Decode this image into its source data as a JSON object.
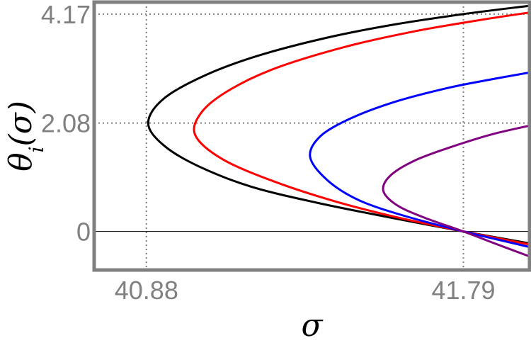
{
  "chart_data": {
    "type": "line",
    "xlabel": "σ",
    "ylabel": "θ_i(σ)",
    "xlim": [
      40.73,
      41.98
    ],
    "ylim": [
      -0.74,
      4.4
    ],
    "x_ticks": [
      {
        "value": 40.88,
        "label": "40.88"
      },
      {
        "value": 41.79,
        "label": "41.79"
      }
    ],
    "y_ticks": [
      {
        "value": 0,
        "label": "0"
      },
      {
        "value": 2.08,
        "label": "2.08"
      },
      {
        "value": 4.17,
        "label": "4.17"
      }
    ],
    "gridlines": {
      "x": [
        40.88,
        41.79
      ],
      "y": [
        2.08,
        4.17
      ]
    },
    "zero_line": true,
    "series": [
      {
        "color": "#000000",
        "points": [
          [
            41.98,
            -0.23
          ],
          [
            41.79,
            0.0
          ],
          [
            41.57,
            0.28
          ],
          [
            41.37,
            0.55
          ],
          [
            41.18,
            0.86
          ],
          [
            41.03,
            1.25
          ],
          [
            40.93,
            1.65
          ],
          [
            40.885,
            2.08
          ],
          [
            40.93,
            2.55
          ],
          [
            41.05,
            3.0
          ],
          [
            41.2,
            3.37
          ],
          [
            41.4,
            3.72
          ],
          [
            41.6,
            3.98
          ],
          [
            41.8,
            4.18
          ],
          [
            41.98,
            4.33
          ]
        ]
      },
      {
        "color": "#ff0000",
        "points": [
          [
            41.98,
            -0.25
          ],
          [
            41.79,
            0.0
          ],
          [
            41.6,
            0.27
          ],
          [
            41.42,
            0.58
          ],
          [
            41.25,
            0.95
          ],
          [
            41.1,
            1.38
          ],
          [
            41.02,
            1.85
          ],
          [
            41.04,
            2.3
          ],
          [
            41.12,
            2.72
          ],
          [
            41.25,
            3.13
          ],
          [
            41.45,
            3.54
          ],
          [
            41.65,
            3.84
          ],
          [
            41.85,
            4.07
          ],
          [
            41.98,
            4.2
          ]
        ]
      },
      {
        "color": "#0000ff",
        "points": [
          [
            41.98,
            -0.3
          ],
          [
            41.79,
            0.0
          ],
          [
            41.62,
            0.3
          ],
          [
            41.49,
            0.6
          ],
          [
            41.4,
            0.98
          ],
          [
            41.35,
            1.43
          ],
          [
            41.38,
            1.83
          ],
          [
            41.47,
            2.18
          ],
          [
            41.6,
            2.5
          ],
          [
            41.75,
            2.76
          ],
          [
            41.88,
            2.93
          ],
          [
            41.98,
            3.05
          ]
        ]
      },
      {
        "color": "#800080",
        "points": [
          [
            41.98,
            -0.48
          ],
          [
            41.88,
            -0.23
          ],
          [
            41.79,
            0.0
          ],
          [
            41.68,
            0.26
          ],
          [
            41.6,
            0.5
          ],
          [
            41.56,
            0.78
          ],
          [
            41.58,
            1.07
          ],
          [
            41.65,
            1.36
          ],
          [
            41.75,
            1.61
          ],
          [
            41.87,
            1.86
          ],
          [
            41.98,
            2.03
          ]
        ]
      }
    ]
  }
}
